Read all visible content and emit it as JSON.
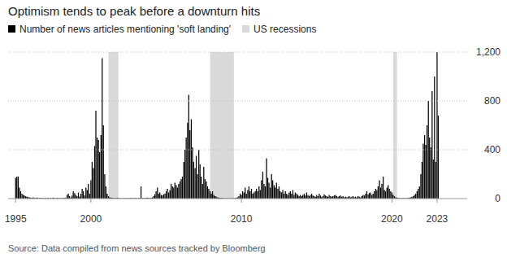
{
  "chart_data": {
    "type": "bar",
    "title": "Optimism tends to peak before a downturn hits",
    "source": "Source: Data compiled from news sources tracked by Bloomberg",
    "xlim": [
      1994.5,
      2025
    ],
    "xticks": [
      1995,
      2000,
      2010,
      2020,
      2023
    ],
    "ylim": [
      0,
      1200
    ],
    "yticks": [
      0,
      400,
      800,
      {
        "value": 1200,
        "label": "1,200"
      }
    ],
    "grid": true,
    "recessions": {
      "name": "US recessions",
      "color": "#d9d9d9",
      "start": [
        2001.17,
        2007.92,
        2020.08
      ],
      "end": [
        2001.83,
        2009.5,
        2020.33
      ]
    },
    "x": [
      1995,
      1995.08,
      1995.17,
      1995.25,
      1995.33,
      1995.42,
      1995.5,
      1995.58,
      1995.67,
      1995.75,
      1995.83,
      1995.92,
      1996,
      1996.08,
      1996.17,
      1996.25,
      1996.33,
      1996.42,
      1996.5,
      1996.58,
      1996.67,
      1996.75,
      1996.83,
      1996.92,
      1997,
      1997.08,
      1997.17,
      1997.25,
      1997.33,
      1997.42,
      1997.5,
      1997.58,
      1997.67,
      1997.75,
      1997.83,
      1997.92,
      1998,
      1998.08,
      1998.17,
      1998.25,
      1998.33,
      1998.42,
      1998.5,
      1998.58,
      1998.67,
      1998.75,
      1998.83,
      1998.92,
      1999,
      1999.08,
      1999.17,
      1999.25,
      1999.33,
      1999.42,
      1999.5,
      1999.58,
      1999.67,
      1999.75,
      1999.83,
      1999.92,
      2000,
      2000.08,
      2000.17,
      2000.25,
      2000.33,
      2000.42,
      2000.5,
      2000.58,
      2000.67,
      2000.75,
      2000.83,
      2000.92,
      2001,
      2001.08,
      2001.17,
      2001.25,
      2001.33,
      2001.42,
      2001.5,
      2001.58,
      2001.67,
      2001.75,
      2001.83,
      2001.92,
      2002,
      2002.08,
      2002.17,
      2002.25,
      2002.33,
      2002.42,
      2002.5,
      2002.58,
      2002.67,
      2002.75,
      2002.83,
      2002.92,
      2003,
      2003.08,
      2003.17,
      2003.25,
      2003.33,
      2003.42,
      2003.5,
      2003.58,
      2003.67,
      2003.75,
      2003.83,
      2003.92,
      2004,
      2004.08,
      2004.17,
      2004.25,
      2004.33,
      2004.42,
      2004.5,
      2004.58,
      2004.67,
      2004.75,
      2004.83,
      2004.92,
      2005,
      2005.08,
      2005.17,
      2005.25,
      2005.33,
      2005.42,
      2005.5,
      2005.58,
      2005.67,
      2005.75,
      2005.83,
      2005.92,
      2006,
      2006.08,
      2006.17,
      2006.25,
      2006.33,
      2006.42,
      2006.5,
      2006.58,
      2006.67,
      2006.75,
      2006.83,
      2006.92,
      2007,
      2007.08,
      2007.17,
      2007.25,
      2007.33,
      2007.42,
      2007.5,
      2007.58,
      2007.67,
      2007.75,
      2007.83,
      2007.92,
      2008,
      2008.08,
      2008.17,
      2008.25,
      2008.33,
      2008.42,
      2008.5,
      2008.58,
      2008.67,
      2008.75,
      2008.83,
      2008.92,
      2009,
      2009.08,
      2009.17,
      2009.25,
      2009.33,
      2009.42,
      2009.5,
      2009.58,
      2009.67,
      2009.75,
      2009.83,
      2009.92,
      2010,
      2010.08,
      2010.17,
      2010.25,
      2010.33,
      2010.42,
      2010.5,
      2010.58,
      2010.67,
      2010.75,
      2010.83,
      2010.92,
      2011,
      2011.08,
      2011.17,
      2011.25,
      2011.33,
      2011.42,
      2011.5,
      2011.58,
      2011.67,
      2011.75,
      2011.83,
      2011.92,
      2012,
      2012.08,
      2012.17,
      2012.25,
      2012.33,
      2012.42,
      2012.5,
      2012.58,
      2012.67,
      2012.75,
      2012.83,
      2012.92,
      2013,
      2013.08,
      2013.17,
      2013.25,
      2013.33,
      2013.42,
      2013.5,
      2013.58,
      2013.67,
      2013.75,
      2013.83,
      2013.92,
      2014,
      2014.08,
      2014.17,
      2014.25,
      2014.33,
      2014.42,
      2014.5,
      2014.58,
      2014.67,
      2014.75,
      2014.83,
      2014.92,
      2015,
      2015.08,
      2015.17,
      2015.25,
      2015.33,
      2015.42,
      2015.5,
      2015.58,
      2015.67,
      2015.75,
      2015.83,
      2015.92,
      2016,
      2016.08,
      2016.17,
      2016.25,
      2016.33,
      2016.42,
      2016.5,
      2016.58,
      2016.67,
      2016.75,
      2016.83,
      2016.92,
      2017,
      2017.08,
      2017.17,
      2017.25,
      2017.33,
      2017.42,
      2017.5,
      2017.58,
      2017.67,
      2017.75,
      2017.83,
      2017.92,
      2018,
      2018.08,
      2018.17,
      2018.25,
      2018.33,
      2018.42,
      2018.5,
      2018.58,
      2018.67,
      2018.75,
      2018.83,
      2018.92,
      2019,
      2019.08,
      2019.17,
      2019.25,
      2019.33,
      2019.42,
      2019.5,
      2019.58,
      2019.67,
      2019.75,
      2019.83,
      2019.92,
      2020,
      2020.08,
      2020.17,
      2020.25,
      2020.33,
      2020.42,
      2020.5,
      2020.58,
      2020.67,
      2020.75,
      2020.83,
      2020.92,
      2021,
      2021.08,
      2021.17,
      2021.25,
      2021.33,
      2021.42,
      2021.5,
      2021.58,
      2021.67,
      2021.75,
      2021.83,
      2021.92,
      2022,
      2022.08,
      2022.17,
      2022.25,
      2022.33,
      2022.42,
      2022.5,
      2022.58,
      2022.67,
      2022.75,
      2022.83,
      2022.92,
      2023,
      2023.08
    ],
    "series": [
      {
        "name": "Number of news articles mentioning 'soft landing'",
        "color": "#000000",
        "values": [
          170,
          180,
          180,
          90,
          60,
          40,
          30,
          25,
          20,
          15,
          12,
          10,
          8,
          6,
          10,
          5,
          5,
          8,
          4,
          5,
          6,
          4,
          5,
          3,
          5,
          4,
          6,
          3,
          5,
          4,
          8,
          5,
          3,
          6,
          4,
          5,
          4,
          3,
          6,
          5,
          8,
          30,
          40,
          20,
          10,
          25,
          60,
          45,
          30,
          20,
          50,
          15,
          40,
          80,
          60,
          25,
          90,
          70,
          120,
          40,
          150,
          300,
          250,
          430,
          720,
          500,
          480,
          380,
          520,
          1150,
          600,
          200,
          100,
          40,
          20,
          10,
          8,
          6,
          5,
          4,
          5,
          6,
          4,
          3,
          3,
          2,
          4,
          3,
          5,
          4,
          3,
          4,
          6,
          3,
          4,
          5,
          4,
          3,
          5,
          4,
          100,
          6,
          4,
          5,
          6,
          8,
          5,
          4,
          6,
          10,
          20,
          35,
          60,
          90,
          40,
          50,
          30,
          25,
          35,
          40,
          60,
          80,
          50,
          70,
          120,
          100,
          90,
          130,
          110,
          90,
          120,
          140,
          160,
          180,
          300,
          400,
          500,
          620,
          850,
          560,
          650,
          420,
          300,
          250,
          350,
          200,
          400,
          280,
          180,
          120,
          260,
          160,
          140,
          100,
          80,
          60,
          40,
          60,
          30,
          20,
          15,
          10,
          8,
          6,
          5,
          4,
          3,
          3,
          2,
          3,
          2,
          3,
          2,
          3,
          4,
          5,
          8,
          10,
          20,
          40,
          30,
          60,
          50,
          90,
          40,
          70,
          100,
          60,
          80,
          40,
          50,
          60,
          80,
          60,
          100,
          70,
          150,
          220,
          120,
          100,
          330,
          170,
          130,
          90,
          200,
          150,
          110,
          90,
          130,
          80,
          100,
          60,
          50,
          70,
          40,
          60,
          40,
          30,
          50,
          60,
          40,
          70,
          30,
          50,
          40,
          30,
          20,
          30,
          20,
          30,
          40,
          25,
          50,
          30,
          20,
          30,
          40,
          25,
          20,
          15,
          30,
          20,
          40,
          25,
          15,
          20,
          35,
          25,
          20,
          15,
          30,
          20,
          15,
          20,
          25,
          30,
          20,
          15,
          20,
          25,
          15,
          20,
          10,
          15,
          10,
          15,
          20,
          10,
          15,
          20,
          10,
          15,
          10,
          20,
          15,
          10,
          20,
          30,
          25,
          40,
          60,
          35,
          45,
          50,
          30,
          40,
          60,
          80,
          70,
          100,
          150,
          90,
          120,
          180,
          70,
          60,
          90,
          110,
          80,
          60,
          50,
          30,
          20,
          10,
          8,
          5,
          4,
          3,
          4,
          5,
          3,
          4,
          5,
          6,
          8,
          10,
          15,
          20,
          30,
          40,
          60,
          80,
          100,
          200,
          300,
          450,
          520,
          440,
          600,
          800,
          500,
          420,
          880,
          320,
          1000,
          300,
          1200,
          680
        ]
      }
    ]
  }
}
